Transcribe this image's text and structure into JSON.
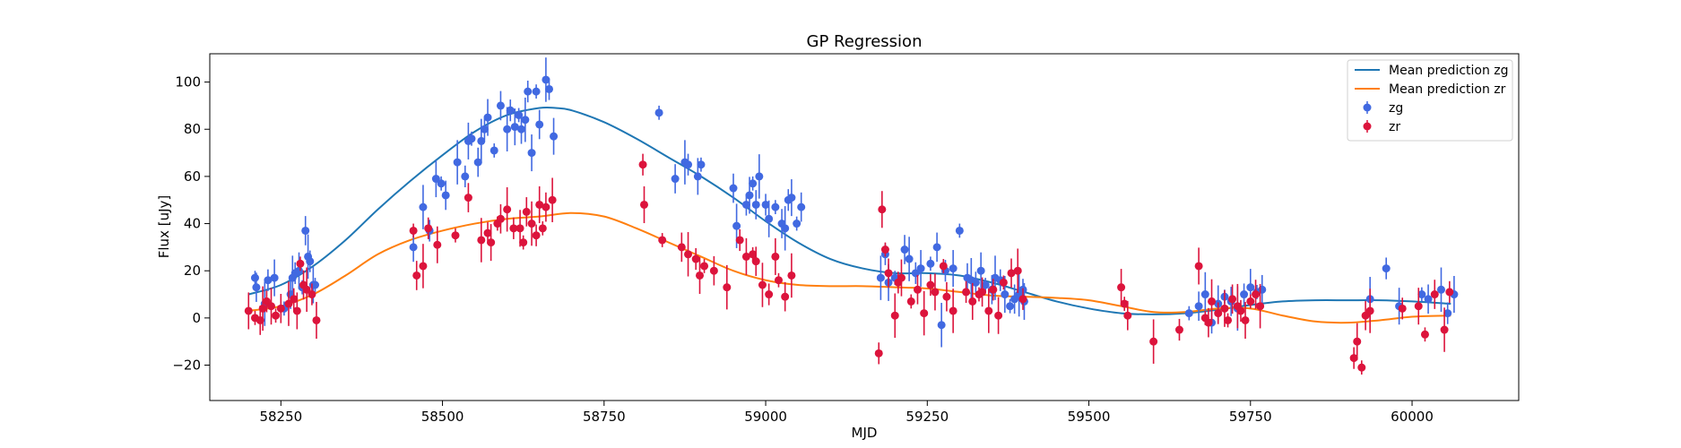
{
  "chart_data": {
    "type": "scatter",
    "title": "GP Regression",
    "xlabel": "MJD",
    "ylabel": "Flux [uJy]",
    "xlim": [
      58140,
      60165
    ],
    "ylim": [
      -35,
      112
    ],
    "xticks": [
      58250,
      58500,
      58750,
      59000,
      59250,
      59500,
      59750,
      60000
    ],
    "yticks": [
      -20,
      0,
      20,
      40,
      60,
      80,
      100
    ],
    "grid": false,
    "legend_position": "top-right",
    "lines": [
      {
        "name": "Mean prediction zg",
        "color": "#1f77b4",
        "x": [
          58200,
          58250,
          58300,
          58350,
          58400,
          58450,
          58500,
          58550,
          58600,
          58650,
          58675,
          58700,
          58750,
          58800,
          58850,
          58900,
          58950,
          59000,
          59050,
          59100,
          59150,
          59200,
          59250,
          59300,
          59350,
          59400,
          59450,
          59500,
          59550,
          59600,
          59650,
          59700,
          59750,
          59800,
          59850,
          59900,
          59950,
          60000,
          60060
        ],
        "y": [
          10,
          14,
          22,
          33,
          46,
          58,
          69,
          79,
          86,
          89,
          89,
          88,
          83,
          76,
          68,
          60,
          51,
          41,
          32,
          25,
          21,
          19,
          19,
          18,
          15,
          11,
          7,
          4,
          2,
          1.5,
          2,
          3.5,
          5.5,
          7,
          7.5,
          7.5,
          7.5,
          7,
          6
        ]
      },
      {
        "name": "Mean prediction zr",
        "color": "#ff7f0e",
        "x": [
          58200,
          58250,
          58300,
          58350,
          58400,
          58450,
          58500,
          58550,
          58600,
          58650,
          58700,
          58750,
          58800,
          58850,
          58900,
          58950,
          59000,
          59050,
          59100,
          59150,
          59200,
          59250,
          59300,
          59350,
          59400,
          59450,
          59500,
          59550,
          59600,
          59650,
          59700,
          59750,
          59800,
          59850,
          59900,
          59950,
          60000,
          60060
        ],
        "y": [
          3,
          5,
          10,
          18,
          27,
          33,
          37,
          40,
          42,
          43,
          44.5,
          43,
          38,
          32,
          26,
          20,
          16,
          14,
          13.5,
          13.5,
          13,
          12.5,
          11,
          9.5,
          9,
          8.5,
          7.5,
          5,
          2.5,
          2.5,
          4,
          4,
          1,
          -1.5,
          -2,
          -1,
          0.5,
          1
        ]
      }
    ],
    "series": [
      {
        "name": "zg",
        "color": "#4169e1",
        "x": [
          58210,
          58212,
          58225,
          58230,
          58240,
          58255,
          58265,
          58268,
          58272,
          58278,
          58283,
          58288,
          58292,
          58295,
          58300,
          58303,
          58455,
          58470,
          58480,
          58490,
          58498,
          58505,
          58523,
          58535,
          58540,
          58545,
          58555,
          58560,
          58565,
          58570,
          58580,
          58590,
          58600,
          58605,
          58612,
          58618,
          58622,
          58628,
          58632,
          58638,
          58645,
          58650,
          58660,
          58665,
          58672,
          58835,
          58860,
          58875,
          58880,
          58895,
          58900,
          58950,
          58955,
          58970,
          58975,
          58980,
          58985,
          58990,
          59000,
          59005,
          59015,
          59025,
          59030,
          59035,
          59040,
          59048,
          59055,
          59178,
          59185,
          59190,
          59200,
          59215,
          59222,
          59232,
          59240,
          59255,
          59265,
          59272,
          59278,
          59290,
          59300,
          59312,
          59318,
          59325,
          59333,
          59340,
          59350,
          59355,
          59363,
          59370,
          59378,
          59385,
          59392,
          59398,
          59400,
          59655,
          59670,
          59680,
          59690,
          59700,
          59710,
          59720,
          59730,
          59740,
          59750,
          59760,
          59768,
          59935,
          59960,
          59980,
          60015,
          60025,
          60045,
          60055,
          60065
        ],
        "y": [
          17,
          13,
          6,
          16,
          17,
          4,
          10,
          17,
          19,
          20,
          13,
          37,
          26,
          24,
          14,
          14,
          30,
          47,
          37,
          59,
          57,
          52,
          66,
          60,
          75,
          76,
          66,
          75,
          80,
          85,
          71,
          90,
          80,
          88,
          81,
          86,
          80,
          84,
          96,
          70,
          96,
          82,
          101,
          97,
          77,
          87,
          59,
          66,
          65,
          60,
          65,
          55,
          39,
          48,
          52,
          57,
          48,
          60,
          48,
          42,
          47,
          40,
          38,
          50,
          51,
          40,
          47,
          17,
          27,
          15,
          17,
          29,
          25,
          19,
          21,
          23,
          30,
          -3,
          20,
          21,
          37,
          17,
          16,
          15,
          20,
          14,
          12,
          17,
          16,
          10,
          5,
          8,
          10,
          12,
          7,
          2,
          5,
          10,
          -2,
          6,
          9,
          7,
          4,
          10,
          13,
          11,
          12,
          8,
          21,
          5,
          10,
          8,
          12,
          2,
          10
        ]
      },
      {
        "name": "zr",
        "color": "#dc143c",
        "x": [
          58200,
          58210,
          58218,
          58222,
          58228,
          58235,
          58242,
          58250,
          58262,
          58270,
          58275,
          58280,
          58285,
          58290,
          58298,
          58305,
          58455,
          58460,
          58470,
          58478,
          58492,
          58520,
          58540,
          58560,
          58570,
          58575,
          58585,
          58590,
          58600,
          58610,
          58620,
          58625,
          58630,
          58638,
          58645,
          58650,
          58655,
          58660,
          58670,
          58810,
          58812,
          58840,
          58870,
          58880,
          58892,
          58898,
          58905,
          58920,
          58940,
          58960,
          58970,
          58980,
          58985,
          58995,
          59005,
          59015,
          59020,
          59030,
          59040,
          59175,
          59180,
          59185,
          59190,
          59200,
          59205,
          59210,
          59225,
          59235,
          59245,
          59255,
          59262,
          59275,
          59280,
          59290,
          59310,
          59320,
          59330,
          59335,
          59345,
          59352,
          59360,
          59368,
          59380,
          59390,
          59398,
          59550,
          59555,
          59560,
          59600,
          59640,
          59670,
          59680,
          59685,
          59690,
          59700,
          59710,
          59715,
          59722,
          59730,
          59735,
          59742,
          59750,
          59758,
          59765,
          59910,
          59915,
          59922,
          59928,
          59935,
          59985,
          60010,
          60020,
          60035,
          60050,
          60058
        ],
        "y": [
          3,
          0,
          -1,
          4,
          7,
          5,
          1,
          4,
          6,
          8,
          3,
          23,
          14,
          12,
          10,
          -1,
          37,
          18,
          22,
          38,
          31,
          35,
          51,
          33,
          36,
          32,
          40,
          42,
          46,
          38,
          38,
          32,
          45,
          40,
          35,
          48,
          38,
          47,
          50,
          65,
          48,
          33,
          30,
          27,
          25,
          18,
          22,
          20,
          13,
          33,
          26,
          27,
          24,
          14,
          10,
          26,
          16,
          9,
          18,
          -15,
          46,
          29,
          19,
          1,
          15,
          17,
          7,
          12,
          2,
          14,
          11,
          22,
          9,
          3,
          11,
          7,
          10,
          11,
          3,
          12,
          1,
          15,
          19,
          20,
          8,
          13,
          6,
          1,
          -10,
          -5,
          22,
          0,
          -2,
          7,
          2,
          4,
          -1,
          8,
          5,
          3,
          -1,
          7,
          10,
          5,
          -17,
          -10,
          -21,
          1,
          3,
          4,
          5,
          -7,
          10,
          -5,
          11
        ]
      }
    ]
  }
}
